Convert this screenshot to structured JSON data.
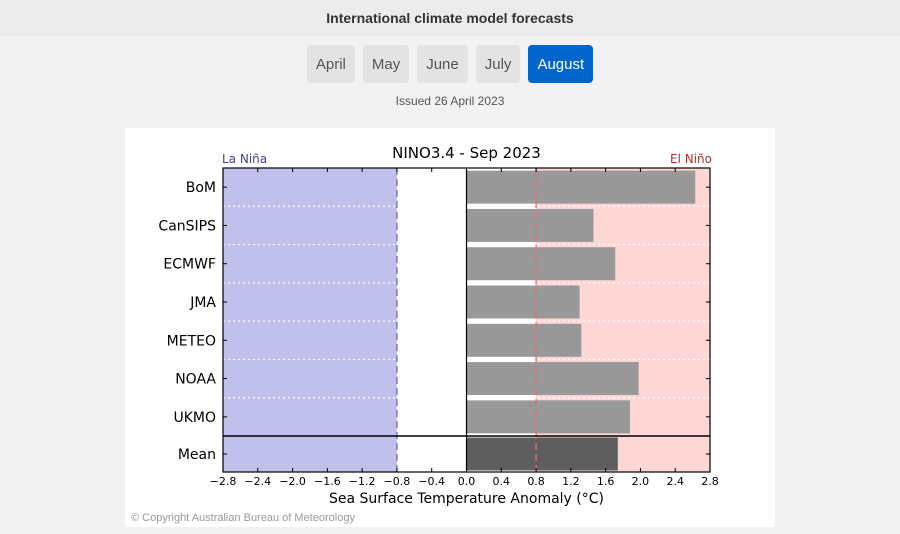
{
  "header": {
    "title": "International climate model forecasts"
  },
  "months": [
    {
      "label": "April",
      "active": false
    },
    {
      "label": "May",
      "active": false
    },
    {
      "label": "June",
      "active": false
    },
    {
      "label": "July",
      "active": false
    },
    {
      "label": "August",
      "active": true
    }
  ],
  "issued": "Issued 26 April 2023",
  "copyright": "© Copyright Australian Bureau of Meteorology",
  "colors": {
    "la_nina_band": "#c0c0ea",
    "el_nino_band": "#fdd6d6",
    "model_bar": "#999999",
    "mean_bar": "#5e5e5e",
    "la_nina_text": "#3f3f8f",
    "el_nino_text": "#b03030",
    "active_tab": "#0066cc"
  },
  "chart_data": {
    "type": "bar",
    "orientation": "horizontal",
    "title": "NINO3.4 - Sep 2023",
    "xlabel": "Sea Surface Temperature Anomaly (°C)",
    "xlim": [
      -2.8,
      2.8
    ],
    "xticks": [
      "−2.8",
      "−2.4",
      "−2.0",
      "−1.6",
      "−1.2",
      "−0.8",
      "−0.4",
      "0.0",
      "0.4",
      "0.8",
      "1.2",
      "1.6",
      "2.0",
      "2.4",
      "2.8"
    ],
    "la_nina_label": "La Niña",
    "el_nino_label": "El Niño",
    "la_nina_threshold": -0.8,
    "el_nino_threshold": 0.8,
    "categories": [
      "BoM",
      "CanSIPS",
      "ECMWF",
      "JMA",
      "METEO",
      "NOAA",
      "UKMO",
      "Mean"
    ],
    "values": [
      2.63,
      1.46,
      1.71,
      1.3,
      1.32,
      1.98,
      1.88,
      1.74
    ]
  }
}
